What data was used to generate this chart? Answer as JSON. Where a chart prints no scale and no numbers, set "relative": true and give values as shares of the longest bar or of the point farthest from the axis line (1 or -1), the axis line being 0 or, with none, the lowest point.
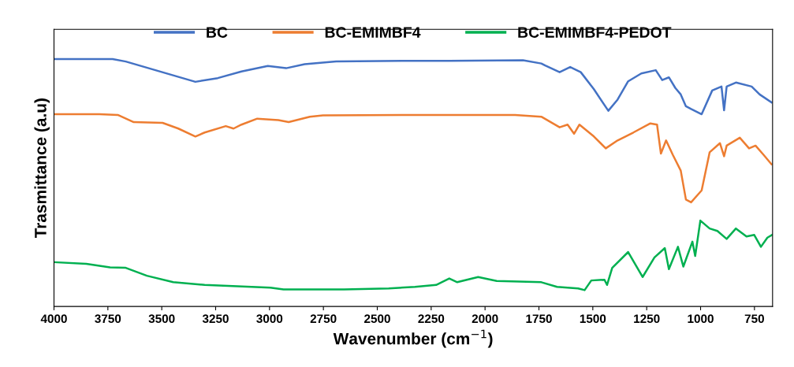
{
  "chart_data": {
    "type": "line",
    "xlabel": "Wavenumber (cm$^{−1}$)",
    "ylabel": "Trasmittance (a.u)",
    "relative": true,
    "xlim": [
      4000,
      666
    ],
    "xticks": [
      4000,
      3750,
      3500,
      3250,
      3000,
      2750,
      2500,
      2250,
      2000,
      1750,
      1500,
      1250,
      1000,
      750
    ],
    "legend": "top",
    "marker": "none",
    "line_style": "solid",
    "series": [
      {
        "name": "BC",
        "color": "#4472c4",
        "x": [
          4000,
          3728,
          3667,
          3344,
          3240,
          3130,
          3008,
          2923,
          2837,
          2691,
          2325,
          2166,
          1824,
          1739,
          1721,
          1654,
          1605,
          1556,
          1495,
          1428,
          1385,
          1336,
          1275,
          1208,
          1178,
          1147,
          1117,
          1092,
          1068,
          1044,
          995,
          946,
          903,
          891,
          879,
          836,
          763,
          726,
          671
        ],
        "values": [
          1.0,
          1.0,
          0.99,
          0.908,
          0.923,
          0.95,
          0.972,
          0.963,
          0.979,
          0.99,
          0.993,
          0.993,
          0.995,
          0.982,
          0.974,
          0.947,
          0.968,
          0.947,
          0.878,
          0.791,
          0.836,
          0.91,
          0.942,
          0.955,
          0.915,
          0.926,
          0.883,
          0.857,
          0.809,
          0.798,
          0.777,
          0.873,
          0.889,
          0.793,
          0.889,
          0.905,
          0.889,
          0.857,
          0.825
        ]
      },
      {
        "name": "BC-EMIMBF4",
        "color": "#ed7d31",
        "x": [
          4000,
          3789,
          3704,
          3630,
          3496,
          3423,
          3344,
          3301,
          3203,
          3167,
          3130,
          3057,
          2959,
          2911,
          2813,
          2752,
          2325,
          1861,
          1739,
          1654,
          1617,
          1587,
          1562,
          1495,
          1440,
          1385,
          1312,
          1233,
          1202,
          1184,
          1160,
          1129,
          1092,
          1068,
          1044,
          995,
          958,
          910,
          891,
          879,
          818,
          775,
          745,
          708,
          671
        ],
        "values": [
          0.777,
          0.777,
          0.774,
          0.745,
          0.742,
          0.719,
          0.687,
          0.703,
          0.729,
          0.719,
          0.735,
          0.759,
          0.753,
          0.745,
          0.767,
          0.772,
          0.774,
          0.774,
          0.767,
          0.724,
          0.735,
          0.698,
          0.735,
          0.687,
          0.639,
          0.671,
          0.703,
          0.74,
          0.735,
          0.618,
          0.671,
          0.613,
          0.549,
          0.432,
          0.421,
          0.469,
          0.623,
          0.66,
          0.607,
          0.65,
          0.682,
          0.639,
          0.65,
          0.613,
          0.575
        ]
      },
      {
        "name": "BC-EMIMBF4-PEDOT",
        "color": "#00b050",
        "x": [
          4000,
          3850,
          3740,
          3667,
          3569,
          3447,
          3301,
          2996,
          2935,
          2654,
          2447,
          2325,
          2227,
          2166,
          2129,
          2032,
          1946,
          1739,
          1666,
          1568,
          1538,
          1507,
          1446,
          1434,
          1410,
          1336,
          1269,
          1214,
          1166,
          1147,
          1105,
          1080,
          1038,
          1025,
          1001,
          958,
          922,
          879,
          836,
          787,
          751,
          720,
          690,
          668
        ],
        "values": [
          0.179,
          0.172,
          0.158,
          0.156,
          0.124,
          0.098,
          0.087,
          0.076,
          0.069,
          0.069,
          0.073,
          0.079,
          0.087,
          0.113,
          0.098,
          0.119,
          0.103,
          0.098,
          0.079,
          0.073,
          0.066,
          0.105,
          0.108,
          0.087,
          0.156,
          0.22,
          0.119,
          0.198,
          0.236,
          0.151,
          0.241,
          0.161,
          0.262,
          0.204,
          0.347,
          0.315,
          0.305,
          0.273,
          0.315,
          0.283,
          0.289,
          0.241,
          0.278,
          0.289
        ]
      }
    ]
  }
}
